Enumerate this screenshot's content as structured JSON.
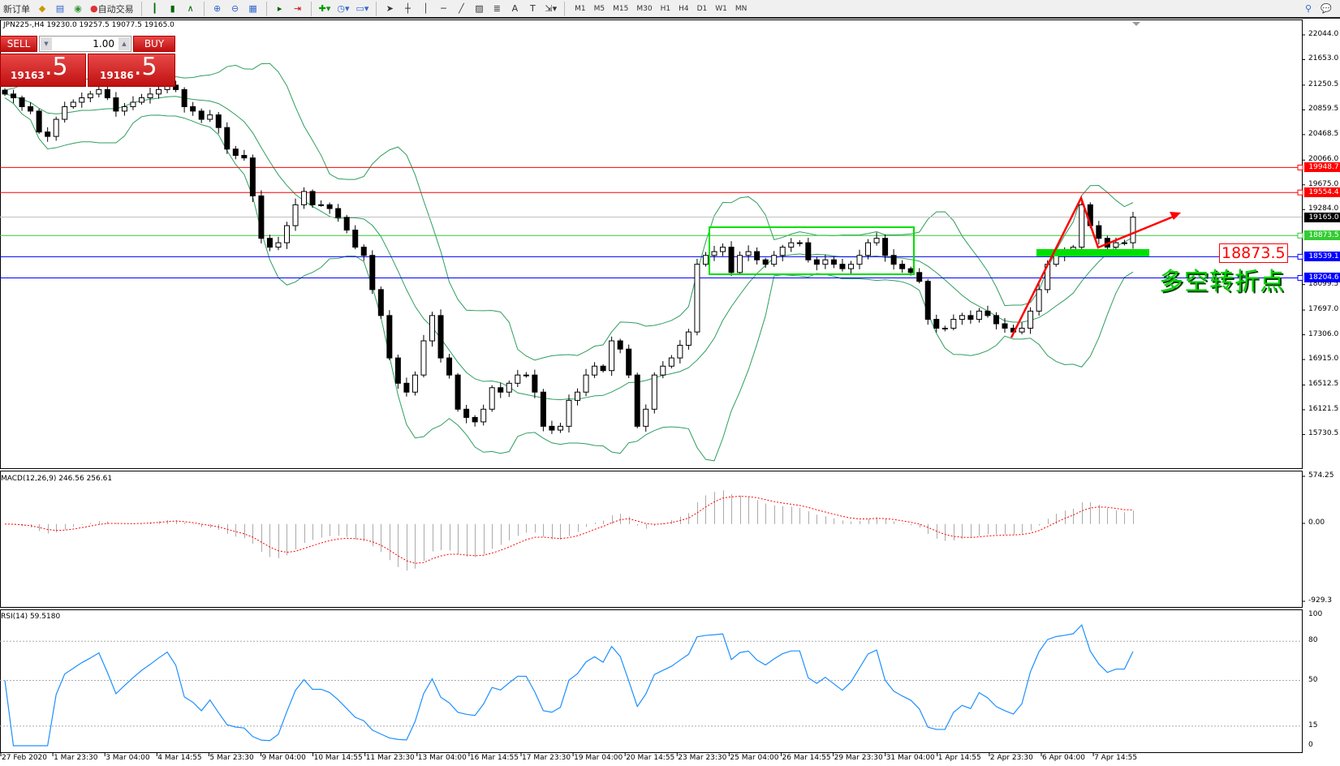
{
  "toolbar": {
    "new_order": "新订单",
    "auto_trade": "自动交易",
    "timeframes": [
      "M1",
      "M5",
      "M15",
      "M30",
      "H1",
      "H4",
      "D1",
      "W1",
      "MN"
    ],
    "icons": [
      "book-icon",
      "database-icon",
      "signal-icon",
      "auto-trade-icon",
      "bar-chart-icon",
      "candlestick-icon",
      "line-chart-icon",
      "zoom-in-icon",
      "zoom-out-icon",
      "tile-icon",
      "autoscroll-icon",
      "shift-icon",
      "indicators-icon",
      "periods-icon",
      "templates-icon",
      "cursor-icon",
      "crosshair-icon",
      "vertical-line-icon",
      "horizontal-line-icon",
      "trendline-icon",
      "channel-icon",
      "fibo-icon",
      "text-icon",
      "label-icon",
      "arrows-icon"
    ]
  },
  "symbol_info": "JPN225-,H4  19230.0 19257.5 19077.5 19165.0",
  "trade_panel": {
    "sell": "SELL",
    "buy": "BUY",
    "lot": "1.00",
    "bid_main": "19163",
    "bid_big": ".5",
    "ask_main": "19186",
    "ask_big": ".5"
  },
  "price_axis": [
    "22044.0",
    "21653.0",
    "21250.5",
    "20859.5",
    "20468.5",
    "20066.0",
    "19675.0",
    "19284.0",
    "18099.5",
    "17697.0",
    "17306.0",
    "16915.0",
    "16512.5",
    "16121.5",
    "15730.5"
  ],
  "levels": [
    {
      "price": 19948.7,
      "label": "19948.7",
      "color": "#ff0000"
    },
    {
      "price": 19554.4,
      "label": "19554.4",
      "color": "#ff0000"
    },
    {
      "price": 19165.0,
      "label": "19165.0",
      "color": "#000000",
      "line": "#c0c0c0"
    },
    {
      "price": 18873.5,
      "label": "18873.5",
      "color": "#33cc33"
    },
    {
      "price": 18539.1,
      "label": "18539.1",
      "color": "#0000ff"
    },
    {
      "price": 18204.6,
      "label": "18204.6",
      "color": "#0000ff"
    }
  ],
  "annotation": {
    "level_text": "18873.5",
    "pivot_text": "多空转折点"
  },
  "chart_data": {
    "type": "candlestick",
    "closes": [
      21110,
      21050,
      20910,
      20840,
      20510,
      20440,
      20710,
      20910,
      20980,
      21050,
      21110,
      21180,
      21050,
      20840,
      20910,
      20980,
      21050,
      21110,
      21180,
      21250,
      21180,
      20910,
      20840,
      20710,
      20780,
      20580,
      20240,
      20140,
      20100,
      19500,
      18830,
      18690,
      18760,
      19030,
      19360,
      19570,
      19360,
      19360,
      19300,
      19160,
      18960,
      18690,
      18560,
      18020,
      17610,
      16940,
      16540,
      16400,
      16670,
      17210,
      17610,
      16940,
      16670,
      16130,
      16000,
      15930,
      16130,
      16470,
      16400,
      16540,
      16670,
      16670,
      16400,
      15860,
      15800,
      15860,
      16270,
      16400,
      16670,
      16810,
      16740,
      17210,
      17080,
      16670,
      15860,
      16130,
      16670,
      16810,
      16940,
      17140,
      17350,
      18420,
      18560,
      18620,
      18690,
      18290,
      18560,
      18620,
      18490,
      18420,
      18560,
      18690,
      18760,
      18760,
      18490,
      18420,
      18490,
      18420,
      18350,
      18420,
      18560,
      18760,
      18830,
      18560,
      18420,
      18350,
      18290,
      18150,
      17550,
      17410,
      17410,
      17550,
      17610,
      17550,
      17680,
      17610,
      17480,
      17410,
      17350,
      17410,
      17680,
      18020,
      18420,
      18560,
      18620,
      18690,
      19360,
      19030,
      18830,
      18690,
      18760,
      18760,
      19165
    ]
  },
  "macd": {
    "label": "MACD(12,26,9) 246.56 256.61",
    "axis": [
      "574.25",
      "0.00",
      "-929.3"
    ],
    "range": [
      -929.3,
      574.25
    ]
  },
  "rsi": {
    "label": "RSI(14) 59.5180",
    "axis": [
      "100",
      "80",
      "50",
      "15",
      "0"
    ],
    "levels": [
      80,
      50,
      15
    ]
  },
  "time_axis": [
    "27 Feb 2020",
    "1 Mar 23:30",
    "3 Mar 04:00",
    "4 Mar 14:55",
    "5 Mar 23:30",
    "9 Mar 04:00",
    "10 Mar 14:55",
    "11 Mar 23:30",
    "13 Mar 04:00",
    "16 Mar 14:55",
    "17 Mar 23:30",
    "19 Mar 04:00",
    "20 Mar 14:55",
    "23 Mar 23:30",
    "25 Mar 04:00",
    "26 Mar 14:55",
    "29 Mar 23:30",
    "31 Mar 04:00",
    "1 Apr 14:55",
    "2 Apr 23:30",
    "6 Apr 04:00",
    "7 Apr 14:55"
  ],
  "colors": {
    "bands": "#2e9e5e",
    "macd_signal": "#ff0000",
    "rsi": "#1e90ff",
    "box": "#00e000",
    "arrow": "#ff0000"
  }
}
